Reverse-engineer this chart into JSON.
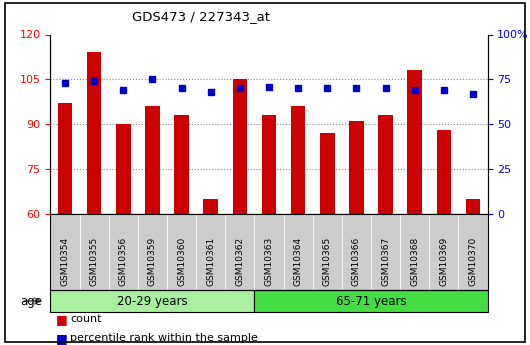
{
  "title": "GDS473 / 227343_at",
  "categories": [
    "GSM10354",
    "GSM10355",
    "GSM10356",
    "GSM10359",
    "GSM10360",
    "GSM10361",
    "GSM10362",
    "GSM10363",
    "GSM10364",
    "GSM10365",
    "GSM10366",
    "GSM10367",
    "GSM10368",
    "GSM10369",
    "GSM10370"
  ],
  "count_values": [
    97,
    114,
    90,
    96,
    93,
    65,
    105,
    93,
    96,
    87,
    91,
    93,
    108,
    88,
    65
  ],
  "percentile_values": [
    73,
    74,
    69,
    75,
    70,
    68,
    70,
    71,
    70,
    70,
    70,
    70,
    69,
    69,
    67
  ],
  "ylim_left": [
    60,
    120
  ],
  "ylim_right": [
    0,
    100
  ],
  "yticks_left": [
    60,
    75,
    90,
    105,
    120
  ],
  "yticks_right": [
    0,
    25,
    50,
    75,
    100
  ],
  "bar_color": "#cc0000",
  "percentile_color": "#0000cc",
  "group1_label": "20-29 years",
  "group2_label": "65-71 years",
  "group1_count": 7,
  "group2_count": 8,
  "group1_bg": "#aaeea0",
  "group2_bg": "#44dd44",
  "tick_bg": "#cccccc",
  "plot_bg": "#ffffff",
  "bar_width": 0.5,
  "grid_yticks": [
    75,
    90,
    105
  ],
  "grid_color": "#888888",
  "legend_count": "count",
  "legend_percentile": "percentile rank within the sample"
}
